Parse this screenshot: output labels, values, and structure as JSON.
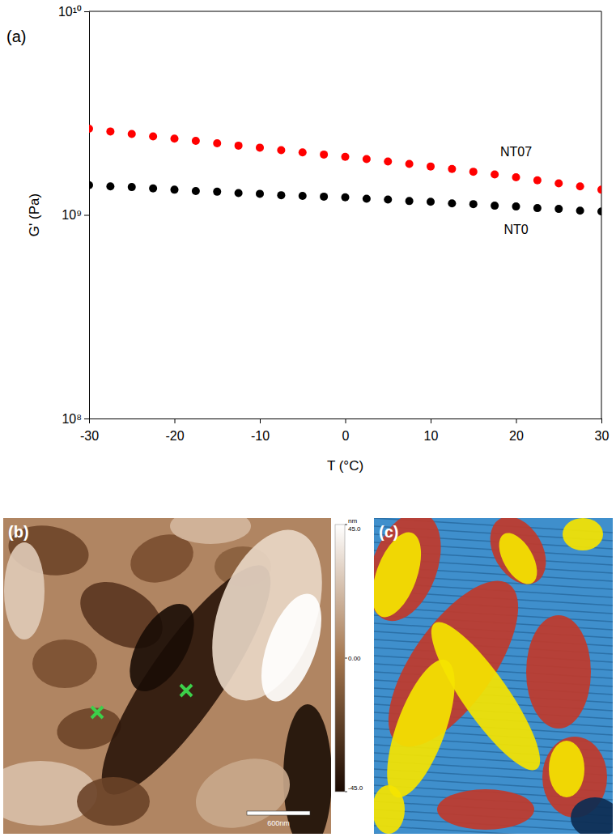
{
  "chart_data": {
    "type": "scatter",
    "title": "(a)",
    "x_label": "T (°C)",
    "y_label": "G' (Pa)",
    "log": "y",
    "x": [
      -30,
      -27.5,
      -25,
      -22.5,
      -20,
      -17.5,
      -15,
      -12.5,
      -10,
      -7.5,
      -5,
      -2.5,
      0,
      2.5,
      5,
      7.5,
      10,
      12.5,
      15,
      17.5,
      20,
      22.5,
      25,
      27.5,
      30
    ],
    "series": [
      {
        "name": "NT07",
        "color": "#ff0000",
        "marker": "circle",
        "values": [
          2650000000,
          2570000000,
          2500000000,
          2430000000,
          2370000000,
          2310000000,
          2250000000,
          2190000000,
          2140000000,
          2080000000,
          2030000000,
          1980000000,
          1930000000,
          1880000000,
          1830000000,
          1780000000,
          1730000000,
          1680000000,
          1630000000,
          1580000000,
          1530000000,
          1480000000,
          1430000000,
          1380000000,
          1330000000
        ]
      },
      {
        "name": "NT0",
        "color": "#000000",
        "marker": "circle",
        "values": [
          1400000000,
          1380000000,
          1370000000,
          1350000000,
          1330000000,
          1310000000,
          1300000000,
          1280000000,
          1270000000,
          1250000000,
          1240000000,
          1230000000,
          1220000000,
          1200000000,
          1190000000,
          1170000000,
          1160000000,
          1140000000,
          1130000000,
          1110000000,
          1100000000,
          1080000000,
          1070000000,
          1050000000,
          1040000000
        ]
      }
    ],
    "xlim": [
      -30,
      30
    ],
    "xticks": [
      -30,
      -20,
      -10,
      0,
      10,
      20,
      30
    ],
    "ylim": [
      100000000,
      10000000000
    ],
    "yticks": [
      {
        "value": 100000000,
        "label": "10⁸"
      },
      {
        "value": 1000000000,
        "label": "10⁹"
      },
      {
        "value": 10000000000,
        "label": "10¹⁰"
      }
    ]
  },
  "images": [
    {
      "label": "(b)",
      "scale_bar": "600nm",
      "colorbar": {
        "label": "nm",
        "range": [
          -45,
          45
        ],
        "ticks": [
          {
            "value": 45,
            "label": "45.0"
          },
          {
            "value": 0,
            "label": "0.00"
          },
          {
            "value": -45,
            "label": "-45.0"
          }
        ]
      }
    },
    {
      "label": "(c)"
    }
  ]
}
